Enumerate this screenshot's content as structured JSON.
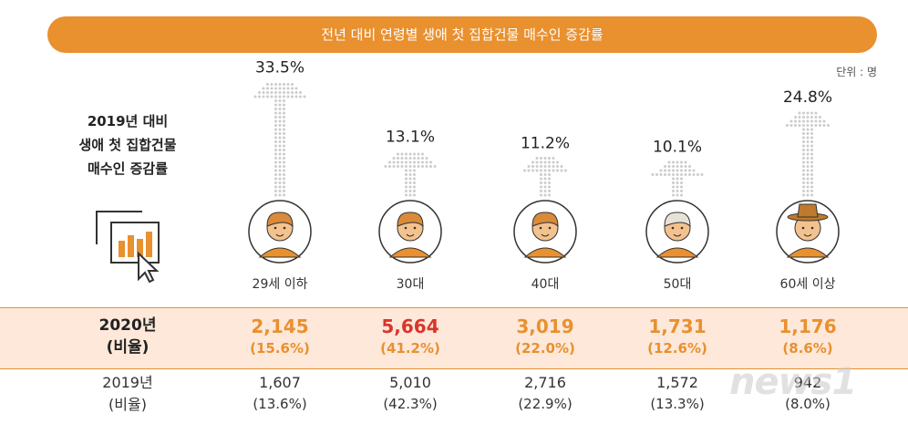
{
  "banner_title": "전년 대비 연령별 생애 첫 집합건물 매수인 증감률",
  "unit": "단위 : 명",
  "side_title": "2019년 대비\n생애 첫 집합건물\n매수인 증감률",
  "colors": {
    "accent": "#E9902F",
    "highlight": "#D9352B",
    "row_bg": "#FDE8DA",
    "arrow_dots": "#CCCCCC"
  },
  "icons": [
    "chart-cursor-icon",
    "young-man-avatar-icon",
    "woman-avatar-icon",
    "man-glasses-avatar-icon",
    "older-woman-avatar-icon",
    "man-hat-avatar-icon"
  ],
  "chart_data": {
    "type": "bar",
    "title": "전년 대비 연령별 생애 첫 집합건물 매수인 증감률",
    "categories": [
      "29세 이하",
      "30대",
      "40대",
      "50대",
      "60세 이상"
    ],
    "series": [
      {
        "values": [
          33.5,
          13.1,
          11.2,
          10.1,
          24.8
        ]
      }
    ],
    "value_labels": [
      "33.5%",
      "13.1%",
      "11.2%",
      "10.1%",
      "24.8%"
    ],
    "ylim": [
      0,
      35
    ],
    "grid": false
  },
  "table": {
    "rows": [
      {
        "label": "2020년\n(비율)",
        "values": [
          "2,145",
          "5,664",
          "3,019",
          "1,731",
          "1,176"
        ],
        "ratios": [
          "(15.6%)",
          "(41.2%)",
          "(22.0%)",
          "(12.6%)",
          "(8.6%)"
        ],
        "highlight_index": 1
      },
      {
        "label": "2019년\n(비율)",
        "values": [
          "1,607",
          "5,010",
          "2,716",
          "1,572",
          "942"
        ],
        "ratios": [
          "(13.6%)",
          "(42.3%)",
          "(22.9%)",
          "(13.3%)",
          "(8.0%)"
        ]
      }
    ]
  },
  "watermark": "news1"
}
